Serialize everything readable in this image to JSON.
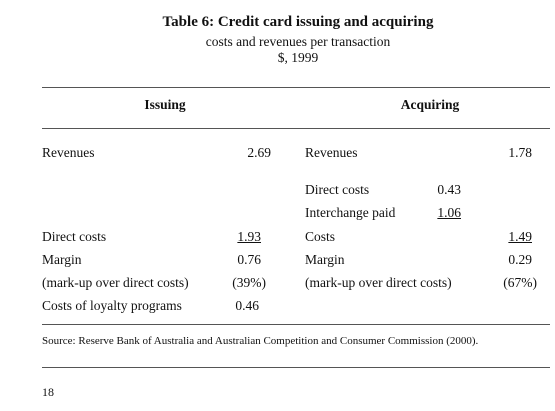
{
  "header": {
    "title": "Table 6: Credit card issuing and acquiring",
    "subtitle": "costs and revenues per transaction",
    "unit": "$, 1999"
  },
  "table": {
    "columns": [
      "Issuing",
      "Acquiring"
    ],
    "issuing": [
      [
        "Revenues",
        "2.69"
      ],
      [
        "Direct costs",
        "1.93"
      ],
      [
        "Margin",
        "0.76"
      ],
      [
        "(mark-up over direct costs)",
        "(39%)"
      ],
      [
        "Costs of loyalty programs",
        "0.46"
      ]
    ],
    "acquiring": [
      [
        "Revenues",
        "1.78"
      ],
      [
        "Direct costs",
        "0.43"
      ],
      [
        "Interchange paid",
        "1.06"
      ],
      [
        "Costs",
        "1.49"
      ],
      [
        "Margin",
        "0.29"
      ],
      [
        "(mark-up over direct costs)",
        "(67%)"
      ]
    ]
  },
  "source": "Source: Reserve Bank of Australia and Australian Competition and Consumer Commission (2000).",
  "page_number": "18"
}
